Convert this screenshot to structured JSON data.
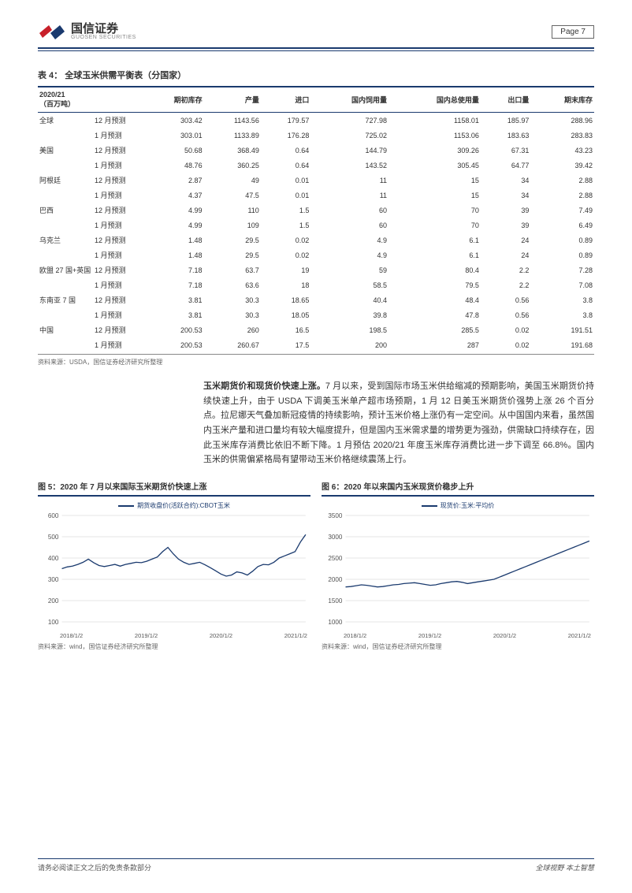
{
  "header": {
    "company": "国信证券",
    "company_en": "GUOSEN SECURITIES",
    "page_label": "Page  7",
    "logo_colors": {
      "red": "#c8202a",
      "blue": "#1a3a6e"
    }
  },
  "table": {
    "title": "表 4：  全球玉米供需平衡表（分国家）",
    "header_label": "2020/21\n（百万吨）",
    "columns": [
      "",
      "期初库存",
      "产量",
      "进口",
      "国内饲用量",
      "国内总使用量",
      "出口量",
      "期末库存"
    ],
    "regions": [
      {
        "name": "全球",
        "rows": [
          {
            "f": "12 月预测",
            "v": [
              "303.42",
              "1143.56",
              "179.57",
              "727.98",
              "1158.01",
              "185.97",
              "288.96"
            ]
          },
          {
            "f": "1 月预测",
            "v": [
              "303.01",
              "1133.89",
              "176.28",
              "725.02",
              "1153.06",
              "183.63",
              "283.83"
            ]
          }
        ]
      },
      {
        "name": "美国",
        "rows": [
          {
            "f": "12 月预测",
            "v": [
              "50.68",
              "368.49",
              "0.64",
              "144.79",
              "309.26",
              "67.31",
              "43.23"
            ]
          },
          {
            "f": "1 月预测",
            "v": [
              "48.76",
              "360.25",
              "0.64",
              "143.52",
              "305.45",
              "64.77",
              "39.42"
            ]
          }
        ]
      },
      {
        "name": "阿根廷",
        "rows": [
          {
            "f": "12 月预测",
            "v": [
              "2.87",
              "49",
              "0.01",
              "11",
              "15",
              "34",
              "2.88"
            ]
          },
          {
            "f": "1 月预测",
            "v": [
              "4.37",
              "47.5",
              "0.01",
              "11",
              "15",
              "34",
              "2.88"
            ]
          }
        ]
      },
      {
        "name": "巴西",
        "rows": [
          {
            "f": "12 月预测",
            "v": [
              "4.99",
              "110",
              "1.5",
              "60",
              "70",
              "39",
              "7.49"
            ]
          },
          {
            "f": "1 月预测",
            "v": [
              "4.99",
              "109",
              "1.5",
              "60",
              "70",
              "39",
              "6.49"
            ]
          }
        ]
      },
      {
        "name": "乌克兰",
        "rows": [
          {
            "f": "12 月预测",
            "v": [
              "1.48",
              "29.5",
              "0.02",
              "4.9",
              "6.1",
              "24",
              "0.89"
            ]
          },
          {
            "f": "1 月预测",
            "v": [
              "1.48",
              "29.5",
              "0.02",
              "4.9",
              "6.1",
              "24",
              "0.89"
            ]
          }
        ]
      },
      {
        "name": "欧盟 27 国+英国",
        "rows": [
          {
            "f": "12 月预测",
            "v": [
              "7.18",
              "63.7",
              "19",
              "59",
              "80.4",
              "2.2",
              "7.28"
            ]
          },
          {
            "f": "1 月预测",
            "v": [
              "7.18",
              "63.6",
              "18",
              "58.5",
              "79.5",
              "2.2",
              "7.08"
            ]
          }
        ]
      },
      {
        "name": "东南亚 7 国",
        "rows": [
          {
            "f": "12 月预测",
            "v": [
              "3.81",
              "30.3",
              "18.65",
              "40.4",
              "48.4",
              "0.56",
              "3.8"
            ]
          },
          {
            "f": "1 月预测",
            "v": [
              "3.81",
              "30.3",
              "18.05",
              "39.8",
              "47.8",
              "0.56",
              "3.8"
            ]
          }
        ]
      },
      {
        "name": "中国",
        "rows": [
          {
            "f": "12 月预测",
            "v": [
              "200.53",
              "260",
              "16.5",
              "198.5",
              "285.5",
              "0.02",
              "191.51"
            ]
          },
          {
            "f": "1 月预测",
            "v": [
              "200.53",
              "260.67",
              "17.5",
              "200",
              "287",
              "0.02",
              "191.68"
            ]
          }
        ]
      }
    ],
    "source": "资料来源：USDA，国信证券经济研究所整理"
  },
  "body": {
    "bold": "玉米期货价和现货价快速上涨。",
    "text": "7 月以来，受到国际市场玉米供给缩减的预期影响，美国玉米期货价持续快速上升，由于 USDA 下调美玉米单产超市场预期，1 月 12 日美玉米期货价强势上涨 26 个百分点。拉尼娜天气叠加新冠疫情的持续影响，预计玉米价格上涨仍有一定空间。从中国国内来看，虽然国内玉米产量和进口量均有较大幅度提升，但是国内玉米需求量的增势更为强劲，供需缺口持续存在，因此玉米库存消费比依旧不断下降。1 月预估 2020/21 年度玉米库存消费比进一步下调至 66.8%。国内玉米的供需偏紧格局有望带动玉米价格继续震荡上行。"
  },
  "chart_left": {
    "title": "图 5：2020 年 7 月以来国际玉米期货价快速上涨",
    "legend": "期货收盘价(活跃合约):CBOT玉米",
    "y_ticks": [
      "100",
      "200",
      "300",
      "400",
      "500",
      "600"
    ],
    "ylim": [
      100,
      600
    ],
    "x_ticks": [
      "2018/1/2",
      "2019/1/2",
      "2020/1/2",
      "2021/1/2"
    ],
    "line_color": "#1a3a6e",
    "grid_color": "#cccccc",
    "data": [
      350,
      358,
      362,
      370,
      380,
      395,
      378,
      365,
      360,
      365,
      370,
      362,
      370,
      375,
      380,
      378,
      385,
      395,
      405,
      430,
      450,
      420,
      395,
      380,
      370,
      375,
      380,
      368,
      355,
      340,
      325,
      315,
      320,
      335,
      330,
      320,
      338,
      360,
      370,
      368,
      380,
      400,
      410,
      420,
      430,
      475,
      510
    ],
    "source": "资料来源：wind，国信证券经济研究所整理"
  },
  "chart_right": {
    "title": "图 6：2020 年以来国内玉米现货价稳步上升",
    "legend": "现货价:玉米:平均价",
    "y_ticks": [
      "1000",
      "1500",
      "2000",
      "2500",
      "3000",
      "3500"
    ],
    "ylim": [
      1000,
      3500
    ],
    "x_ticks": [
      "2018/1/2",
      "2019/1/2",
      "2020/1/2",
      "2021/1/2"
    ],
    "line_color": "#1a3a6e",
    "grid_color": "#cccccc",
    "data": [
      1820,
      1830,
      1850,
      1870,
      1860,
      1840,
      1820,
      1830,
      1850,
      1870,
      1880,
      1900,
      1910,
      1920,
      1900,
      1880,
      1860,
      1870,
      1900,
      1920,
      1940,
      1950,
      1930,
      1900,
      1920,
      1940,
      1960,
      1980,
      2000,
      2050,
      2100,
      2150,
      2200,
      2250,
      2300,
      2350,
      2400,
      2450,
      2500,
      2550,
      2600,
      2650,
      2700,
      2750,
      2800,
      2850,
      2900
    ],
    "source": "资料来源：wind，国信证券经济研究所整理"
  },
  "footer": {
    "left": "请务必阅读正文之后的免责条款部分",
    "right": "全球视野  本土智慧"
  }
}
